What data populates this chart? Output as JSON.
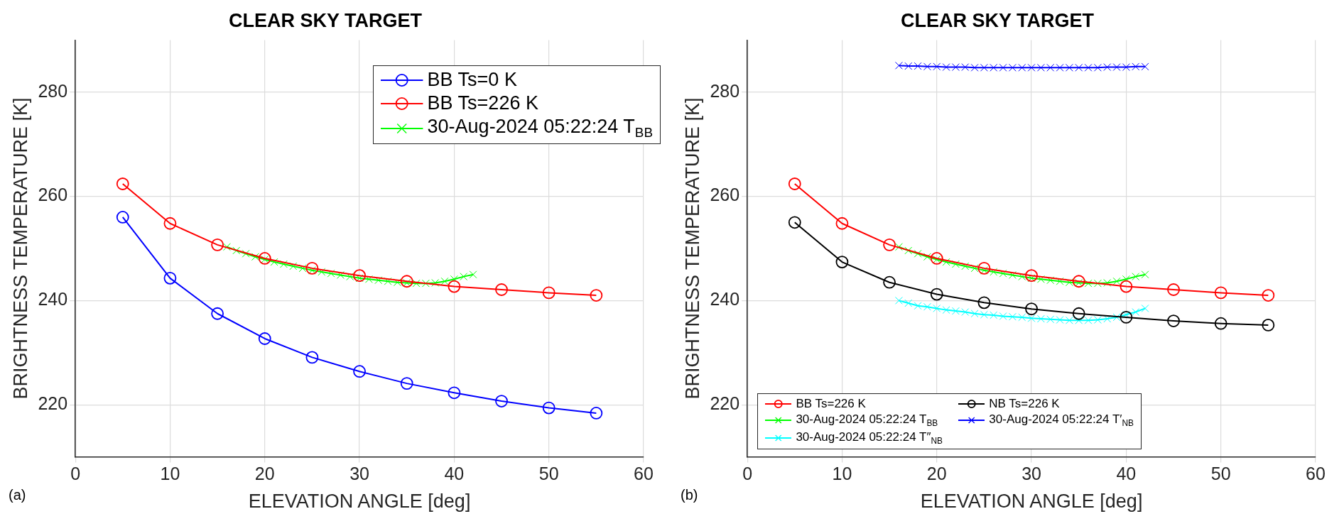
{
  "chart_data": [
    {
      "type": "line",
      "title": "CLEAR SKY TARGET",
      "xlabel": "ELEVATION ANGLE [deg]",
      "ylabel": "BRIGHTNESS TEMPERATURE [K]",
      "xlim": [
        0,
        60
      ],
      "xticks": [
        0,
        10,
        20,
        30,
        40,
        50,
        60
      ],
      "ylim": [
        210,
        290
      ],
      "yticks": [
        220,
        240,
        260,
        280
      ],
      "grid": true,
      "legend": "top right",
      "annotations": [
        "(a)"
      ],
      "series": [
        {
          "name": "BB Ts=0 K",
          "color": "#0000ff",
          "marker": "circle",
          "x": [
            5,
            10,
            15,
            20,
            25,
            30,
            35,
            40,
            45,
            50,
            55
          ],
          "values": [
            256,
            244.3,
            237.5,
            232.7,
            229.1,
            226.4,
            224.1,
            222.3,
            220.7,
            219.4,
            218.4
          ]
        },
        {
          "name": "BB Ts=226 K",
          "color": "#ff0000",
          "marker": "circle",
          "x": [
            5,
            10,
            15,
            20,
            25,
            30,
            35,
            40,
            45,
            50,
            55
          ],
          "values": [
            262.4,
            254.8,
            250.7,
            248.1,
            246.2,
            244.8,
            243.7,
            242.7,
            242.1,
            241.5,
            241
          ]
        },
        {
          "name": "30-Aug-2024 05:22:24 T$_{BB}$",
          "color": "#00ff00",
          "marker": "cross",
          "x": [
            16,
            17,
            18,
            19,
            20,
            21,
            22,
            23,
            24,
            25,
            26,
            27,
            28,
            29,
            30,
            31,
            32,
            33,
            34,
            35,
            36,
            37,
            38,
            39,
            40,
            41,
            42
          ],
          "values": [
            250.3,
            249.6,
            249,
            248.4,
            247.9,
            247.4,
            247,
            246.6,
            246.2,
            245.8,
            245.5,
            245.2,
            244.9,
            244.6,
            244.3,
            244.1,
            243.9,
            243.7,
            243.5,
            243.4,
            243.3,
            243.3,
            243.4,
            243.7,
            244.1,
            244.6,
            245
          ]
        }
      ]
    },
    {
      "type": "line",
      "title": "CLEAR SKY TARGET",
      "xlabel": "ELEVATION ANGLE [deg]",
      "ylabel": "BRIGHTNESS TEMPERATURE [K]",
      "xlim": [
        0,
        60
      ],
      "xticks": [
        0,
        10,
        20,
        30,
        40,
        50,
        60
      ],
      "ylim": [
        210,
        290
      ],
      "yticks": [
        220,
        240,
        260,
        280
      ],
      "grid": true,
      "legend": "bottom",
      "annotations": [
        "(b)"
      ],
      "series": [
        {
          "name": "BB Ts=226 K",
          "color": "#ff0000",
          "marker": "circle",
          "x": [
            5,
            10,
            15,
            20,
            25,
            30,
            35,
            40,
            45,
            50,
            55
          ],
          "values": [
            262.4,
            254.8,
            250.7,
            248.1,
            246.2,
            244.8,
            243.7,
            242.7,
            242.1,
            241.5,
            241
          ]
        },
        {
          "name": "NB Ts=226 K",
          "color": "#000000",
          "marker": "circle",
          "x": [
            5,
            10,
            15,
            20,
            25,
            30,
            35,
            40,
            45,
            50,
            55
          ],
          "values": [
            255,
            247.4,
            243.5,
            241.2,
            239.6,
            238.4,
            237.5,
            236.8,
            236.1,
            235.6,
            235.3
          ]
        },
        {
          "name": "30-Aug-2024 05:22:24 T$_{BB}$",
          "color": "#00ff00",
          "marker": "cross",
          "x": [
            16,
            17,
            18,
            19,
            20,
            21,
            22,
            23,
            24,
            25,
            26,
            27,
            28,
            29,
            30,
            31,
            32,
            33,
            34,
            35,
            36,
            37,
            38,
            39,
            40,
            41,
            42
          ],
          "values": [
            250.3,
            249.6,
            249,
            248.4,
            247.9,
            247.4,
            247,
            246.6,
            246.2,
            245.8,
            245.5,
            245.2,
            244.9,
            244.6,
            244.3,
            244.1,
            243.9,
            243.7,
            243.5,
            243.4,
            243.3,
            243.3,
            243.4,
            243.7,
            244.1,
            244.6,
            245
          ]
        },
        {
          "name": "30-Aug-2024 05:22:24 T′$_{NB}$",
          "color": "#0000ff",
          "marker": "cross",
          "x": [
            16,
            17,
            18,
            19,
            20,
            21,
            22,
            23,
            24,
            25,
            26,
            27,
            28,
            29,
            30,
            31,
            32,
            33,
            34,
            35,
            36,
            37,
            38,
            39,
            40,
            41,
            42
          ],
          "values": [
            285.1,
            285,
            285,
            284.9,
            284.9,
            284.8,
            284.8,
            284.8,
            284.7,
            284.7,
            284.7,
            284.7,
            284.7,
            284.7,
            284.7,
            284.7,
            284.7,
            284.7,
            284.7,
            284.7,
            284.7,
            284.7,
            284.8,
            284.8,
            284.8,
            284.9,
            284.9
          ]
        },
        {
          "name": "30-Aug-2024 05:22:24 T″$_{NB}$",
          "color": "#00ffff",
          "marker": "cross",
          "x": [
            16,
            17,
            18,
            19,
            20,
            21,
            22,
            23,
            24,
            25,
            26,
            27,
            28,
            29,
            30,
            31,
            32,
            33,
            34,
            35,
            36,
            37,
            38,
            39,
            40,
            41,
            42
          ],
          "values": [
            240,
            239.5,
            239,
            238.8,
            238.5,
            238.2,
            238,
            237.8,
            237.5,
            237.3,
            237.2,
            237,
            236.9,
            236.8,
            236.6,
            236.5,
            236.4,
            236.3,
            236.2,
            236.2,
            236.2,
            236.3,
            236.5,
            236.8,
            237.3,
            237.8,
            238.5
          ]
        }
      ]
    }
  ]
}
